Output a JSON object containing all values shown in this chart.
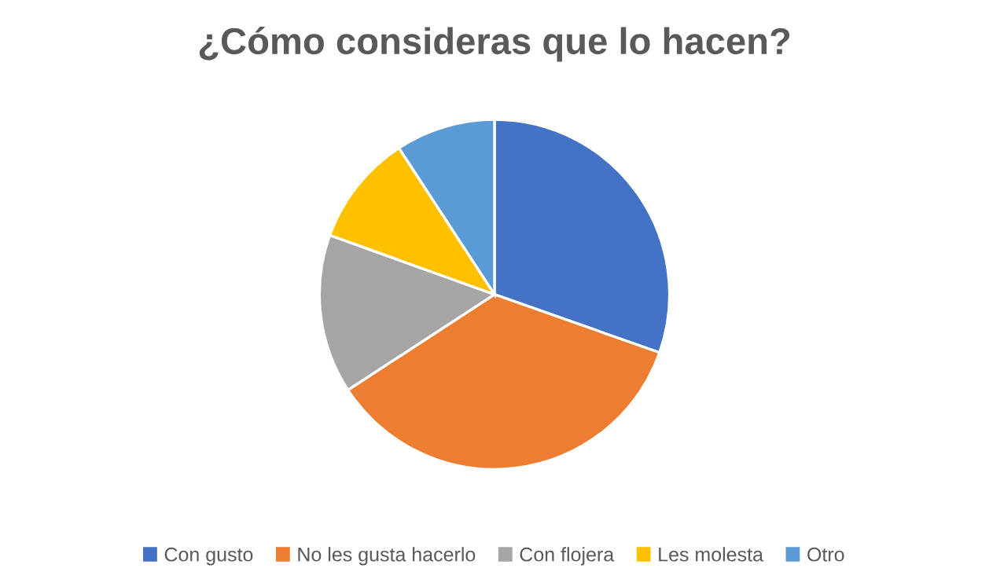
{
  "chart_data": {
    "type": "pie",
    "title": "¿Cómo consideras que lo hacen?",
    "categories": [
      "Con gusto",
      "No les gusta hacerlo",
      "Con flojera",
      "Les molesta",
      "Otro"
    ],
    "values": [
      30.4,
      35.4,
      14.7,
      10.3,
      9.2
    ],
    "colors": [
      "#4472c4",
      "#ed7d31",
      "#a5a5a5",
      "#ffc000",
      "#5b9bd5"
    ],
    "legend": "bottom"
  }
}
